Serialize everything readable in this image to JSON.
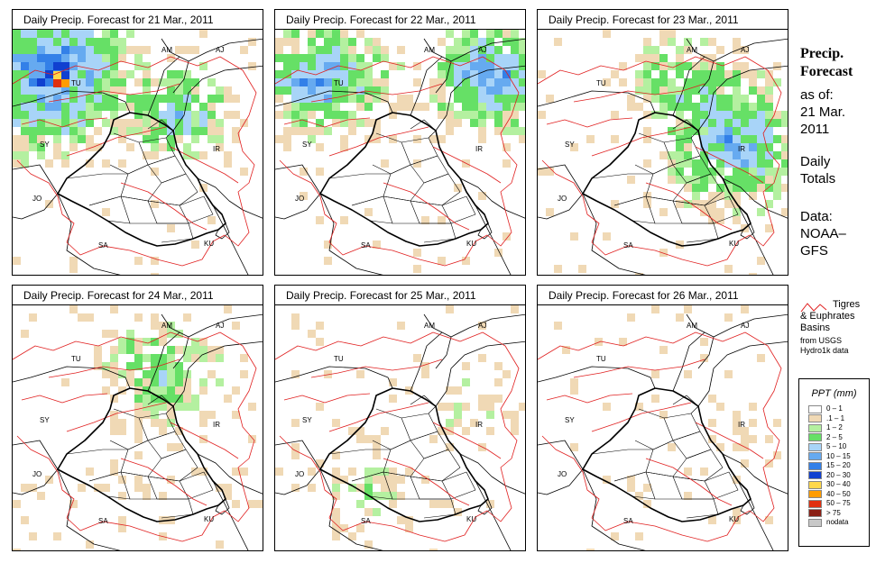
{
  "panels": [
    {
      "title": "Daily Precip. Forecast for  21 Mar., 2011",
      "intensity": 1.0,
      "focus": "nw"
    },
    {
      "title": "Daily Precip. Forecast for  22 Mar., 2011",
      "intensity": 0.85,
      "focus": "north"
    },
    {
      "title": "Daily Precip. Forecast for  23 Mar., 2011",
      "intensity": 0.8,
      "focus": "east"
    },
    {
      "title": "Daily Precip. Forecast for  24 Mar., 2011",
      "intensity": 0.55,
      "focus": "northcenter"
    },
    {
      "title": "Daily Precip. Forecast for  25 Mar., 2011",
      "intensity": 0.35,
      "focus": "south"
    },
    {
      "title": "Daily Precip. Forecast for  26 Mar., 2011",
      "intensity": 0.2,
      "focus": "sparse"
    }
  ],
  "country_labels": [
    "AM",
    "AJ",
    "TU",
    "SY",
    "IR",
    "JO",
    "SA",
    "KU"
  ],
  "side_panel": {
    "title_line1": "Precip.",
    "title_line2": "Forecast",
    "asof_label": "as of:",
    "date_line1": "21 Mar.",
    "date_line2": "2011",
    "totals_line1": "Daily",
    "totals_line2": "Totals",
    "data_line1": "Data:",
    "data_line2": "NOAA–",
    "data_line3": "GFS"
  },
  "basin_legend": {
    "line1": "Tigres",
    "line2": "& Euphrates",
    "line3": "Basins",
    "source1": "from USGS",
    "source2": "Hydro1k data",
    "color": "#e02020"
  },
  "legend": {
    "title": "PPT (mm)",
    "items": [
      {
        "label": "0 – 1",
        "color": "#ffffff"
      },
      {
        "label": ".1 – 1",
        "color": "#f0d9b5"
      },
      {
        "label": "1 – 2",
        "color": "#b4f0a0"
      },
      {
        "label": "2 – 5",
        "color": "#66e066"
      },
      {
        "label": "5 – 10",
        "color": "#a8d4f8"
      },
      {
        "label": "10 – 15",
        "color": "#66aaf0"
      },
      {
        "label": "15 – 20",
        "color": "#3380e8"
      },
      {
        "label": "20 – 30",
        "color": "#1040d0"
      },
      {
        "label": "30 – 40",
        "color": "#ffd84a"
      },
      {
        "label": "40 – 50",
        "color": "#ff9c00"
      },
      {
        "label": "50 – 75",
        "color": "#e03010"
      },
      {
        "label": "> 75",
        "color": "#8b2015"
      },
      {
        "label": "nodata",
        "color": "#c8c8c8"
      }
    ]
  }
}
